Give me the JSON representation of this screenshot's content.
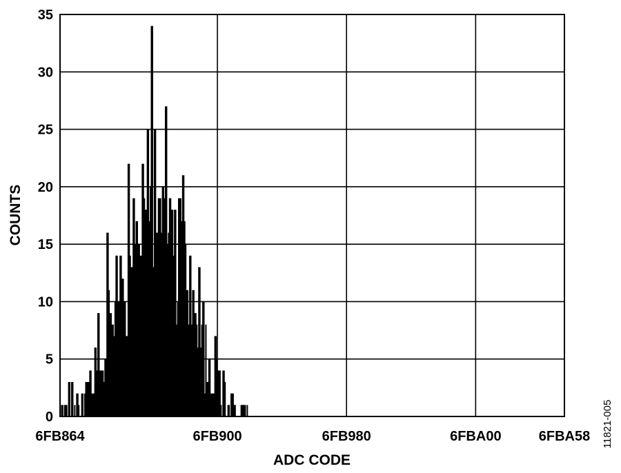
{
  "chart_data": {
    "type": "bar",
    "title": "",
    "xlabel": "ADC CODE",
    "ylabel": "COUNTS",
    "figure_id": "11821-005",
    "xlim": [
      "6FB864",
      "6FBA58"
    ],
    "ylim": [
      0,
      35
    ],
    "y_ticks": [
      0,
      5,
      10,
      15,
      20,
      25,
      30,
      35
    ],
    "x_tick_labels": [
      "6FB864",
      "6FB900",
      "6FB980",
      "6FBA00",
      "6FBA58"
    ],
    "grid": true,
    "bar_color": "#000000",
    "x_step": 1,
    "values": [
      0,
      1,
      1,
      0,
      1,
      1,
      1,
      0,
      3,
      3,
      0,
      3,
      3,
      0,
      1,
      0,
      2,
      2,
      1,
      0,
      0,
      2,
      2,
      0,
      2,
      3,
      3,
      3,
      3,
      4,
      4,
      2,
      2,
      2,
      6,
      6,
      4,
      9,
      9,
      4,
      4,
      4,
      4,
      3,
      5,
      5,
      16,
      16,
      11,
      9,
      9,
      8,
      8,
      7,
      10,
      14,
      14,
      10,
      10,
      14,
      14,
      12,
      12,
      10,
      10,
      7,
      7,
      22,
      22,
      14,
      13,
      13,
      19,
      19,
      15,
      17,
      17,
      15,
      15,
      14,
      14,
      22,
      22,
      19,
      18,
      18,
      25,
      25,
      17,
      20,
      34,
      34,
      13,
      25,
      25,
      16,
      16,
      19,
      19,
      19,
      16,
      20,
      20,
      19,
      27,
      27,
      15,
      16,
      19,
      19,
      18,
      18,
      14,
      18,
      18,
      8,
      10,
      19,
      19,
      19,
      17,
      21,
      21,
      17,
      15,
      11,
      11,
      8,
      14,
      14,
      8,
      11,
      11,
      9,
      9,
      8,
      6,
      13,
      13,
      6,
      8,
      10,
      10,
      2,
      8,
      3,
      3,
      5,
      5,
      2,
      2,
      2,
      2,
      7,
      7,
      5,
      4,
      4,
      4,
      1,
      0,
      4,
      4,
      3,
      0,
      0,
      1,
      1,
      0,
      2,
      2,
      2,
      1,
      1,
      0,
      0,
      0,
      0,
      0,
      1,
      1,
      1,
      1,
      1,
      0,
      1
    ]
  }
}
